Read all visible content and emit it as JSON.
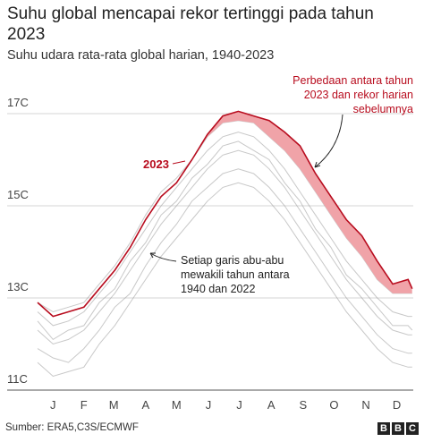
{
  "chart_data": {
    "type": "line",
    "title": "Suhu global mencapai rekor tertinggi pada tahun 2023",
    "subtitle": "Suhu udara rata-rata global harian, 1940-2023",
    "annotations": {
      "difference": "Perbedaan antara tahun 2023 dan rekor harian sebelumnya",
      "gray_lines": "Setiap garis abu-abu mewakili tahun antara 1940 dan 2022"
    },
    "source": "Sumber: ERA5,C3S/ECMWF",
    "logo": [
      "B",
      "B",
      "C"
    ],
    "x": [
      0,
      15,
      30,
      45,
      60,
      75,
      90,
      105,
      120,
      135,
      150,
      165,
      180,
      195,
      210,
      225,
      240,
      255,
      270,
      285,
      300,
      315,
      330,
      345,
      360,
      364
    ],
    "xlim": [
      0,
      365
    ],
    "xticks": [
      {
        "value": 15,
        "label": "J"
      },
      {
        "value": 45,
        "label": "F"
      },
      {
        "value": 74,
        "label": "M"
      },
      {
        "value": 105,
        "label": "A"
      },
      {
        "value": 135,
        "label": "M"
      },
      {
        "value": 166,
        "label": "J"
      },
      {
        "value": 196,
        "label": "J"
      },
      {
        "value": 227,
        "label": "A"
      },
      {
        "value": 258,
        "label": "S"
      },
      {
        "value": 288,
        "label": "O"
      },
      {
        "value": 319,
        "label": "N"
      },
      {
        "value": 349,
        "label": "D"
      }
    ],
    "ylim": [
      11,
      17.75
    ],
    "yticks": [
      {
        "value": 11,
        "label": "11C"
      },
      {
        "value": 13,
        "label": "13C"
      },
      {
        "value": 15,
        "label": "15C"
      },
      {
        "value": 17,
        "label": "17C"
      }
    ],
    "grid": true,
    "difference_color": "#f0a3a8",
    "series": [
      {
        "name": "2023",
        "color": "#b80c1e",
        "values": [
          12.9,
          12.6,
          12.7,
          12.8,
          13.2,
          13.6,
          14.1,
          14.7,
          15.2,
          15.5,
          16.0,
          16.55,
          16.95,
          17.05,
          16.95,
          16.85,
          16.6,
          16.3,
          15.7,
          15.2,
          14.7,
          14.35,
          13.8,
          13.3,
          13.4,
          13.2
        ]
      },
      {
        "color": "#9a9a9a",
        "values": [
          12.9,
          12.7,
          12.8,
          12.9,
          13.3,
          13.7,
          14.2,
          14.8,
          15.3,
          15.6,
          16.0,
          16.5,
          16.8,
          16.85,
          16.8,
          16.5,
          16.2,
          15.8,
          15.3,
          14.8,
          14.3,
          13.9,
          13.4,
          13.1,
          13.1,
          13.1
        ]
      },
      {
        "color": "#9a9a9a",
        "values": [
          12.7,
          12.4,
          12.5,
          12.7,
          13.1,
          13.5,
          14.0,
          14.5,
          15.0,
          15.4,
          15.8,
          16.2,
          16.5,
          16.6,
          16.5,
          16.2,
          15.8,
          15.3,
          14.8,
          14.3,
          13.8,
          13.4,
          13.0,
          12.7,
          12.6,
          12.6
        ]
      },
      {
        "color": "#9a9a9a",
        "values": [
          12.5,
          12.1,
          12.3,
          12.4,
          12.9,
          13.2,
          13.8,
          14.2,
          14.8,
          15.1,
          15.6,
          15.9,
          16.3,
          16.4,
          16.2,
          16.0,
          15.5,
          15.1,
          14.5,
          14.1,
          13.5,
          13.2,
          12.8,
          12.4,
          12.4,
          12.3
        ]
      },
      {
        "color": "#9a9a9a",
        "values": [
          12.3,
          12.0,
          12.1,
          12.3,
          12.7,
          13.1,
          13.6,
          14.1,
          14.6,
          15.0,
          15.4,
          15.8,
          16.1,
          16.2,
          16.1,
          15.8,
          15.4,
          14.9,
          14.4,
          13.9,
          13.4,
          13.0,
          12.6,
          12.3,
          12.2,
          12.2
        ]
      },
      {
        "color": "#9a9a9a",
        "values": [
          11.9,
          11.7,
          11.6,
          11.9,
          12.3,
          12.8,
          13.1,
          13.7,
          14.2,
          14.6,
          15.1,
          15.4,
          15.7,
          15.8,
          15.7,
          15.4,
          15.0,
          14.5,
          14.0,
          13.5,
          13.0,
          12.6,
          12.2,
          11.9,
          11.8,
          11.8
        ]
      },
      {
        "color": "#9a9a9a",
        "values": [
          11.6,
          11.3,
          11.4,
          11.5,
          12.0,
          12.4,
          12.9,
          13.4,
          13.9,
          14.3,
          14.7,
          15.1,
          15.4,
          15.5,
          15.4,
          15.1,
          14.7,
          14.2,
          13.7,
          13.2,
          12.7,
          12.3,
          11.9,
          11.6,
          11.5,
          11.5
        ]
      }
    ]
  }
}
